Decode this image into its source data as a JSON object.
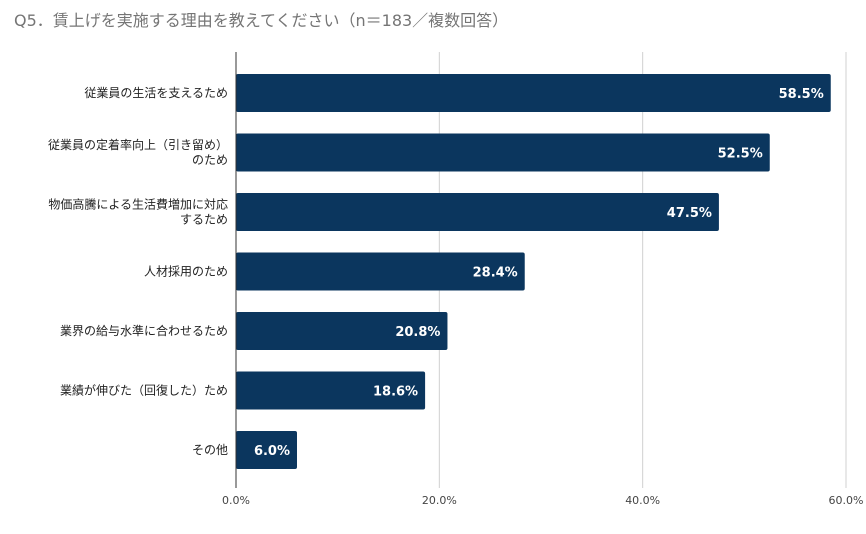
{
  "chart_data": {
    "type": "bar",
    "orientation": "horizontal",
    "title": "Q5．賃上げを実施する理由を教えてください（n＝183／複数回答）",
    "categories": [
      [
        "従業員の生活を支えるため"
      ],
      [
        "従業員の定着率向上（引き留め）",
        "のため"
      ],
      [
        "物価高騰による生活費増加に対応",
        "するため"
      ],
      [
        "人材採用のため"
      ],
      [
        "業界の給与水準に合わせるため"
      ],
      [
        "業績が伸びた（回復した）ため"
      ],
      [
        "その他"
      ]
    ],
    "values": [
      58.5,
      52.5,
      47.5,
      28.4,
      20.8,
      18.6,
      6.0
    ],
    "value_labels": [
      "58.5%",
      "52.5%",
      "47.5%",
      "28.4%",
      "20.8%",
      "18.6%",
      "6.0%"
    ],
    "xlim": [
      0,
      60
    ],
    "x_ticks": [
      0,
      20,
      40,
      60
    ],
    "x_tick_labels": [
      "0.0%",
      "20.0%",
      "40.0%",
      "60.0%"
    ],
    "xlabel": "",
    "ylabel": "",
    "grid": true,
    "bar_color": "#0b365e"
  }
}
